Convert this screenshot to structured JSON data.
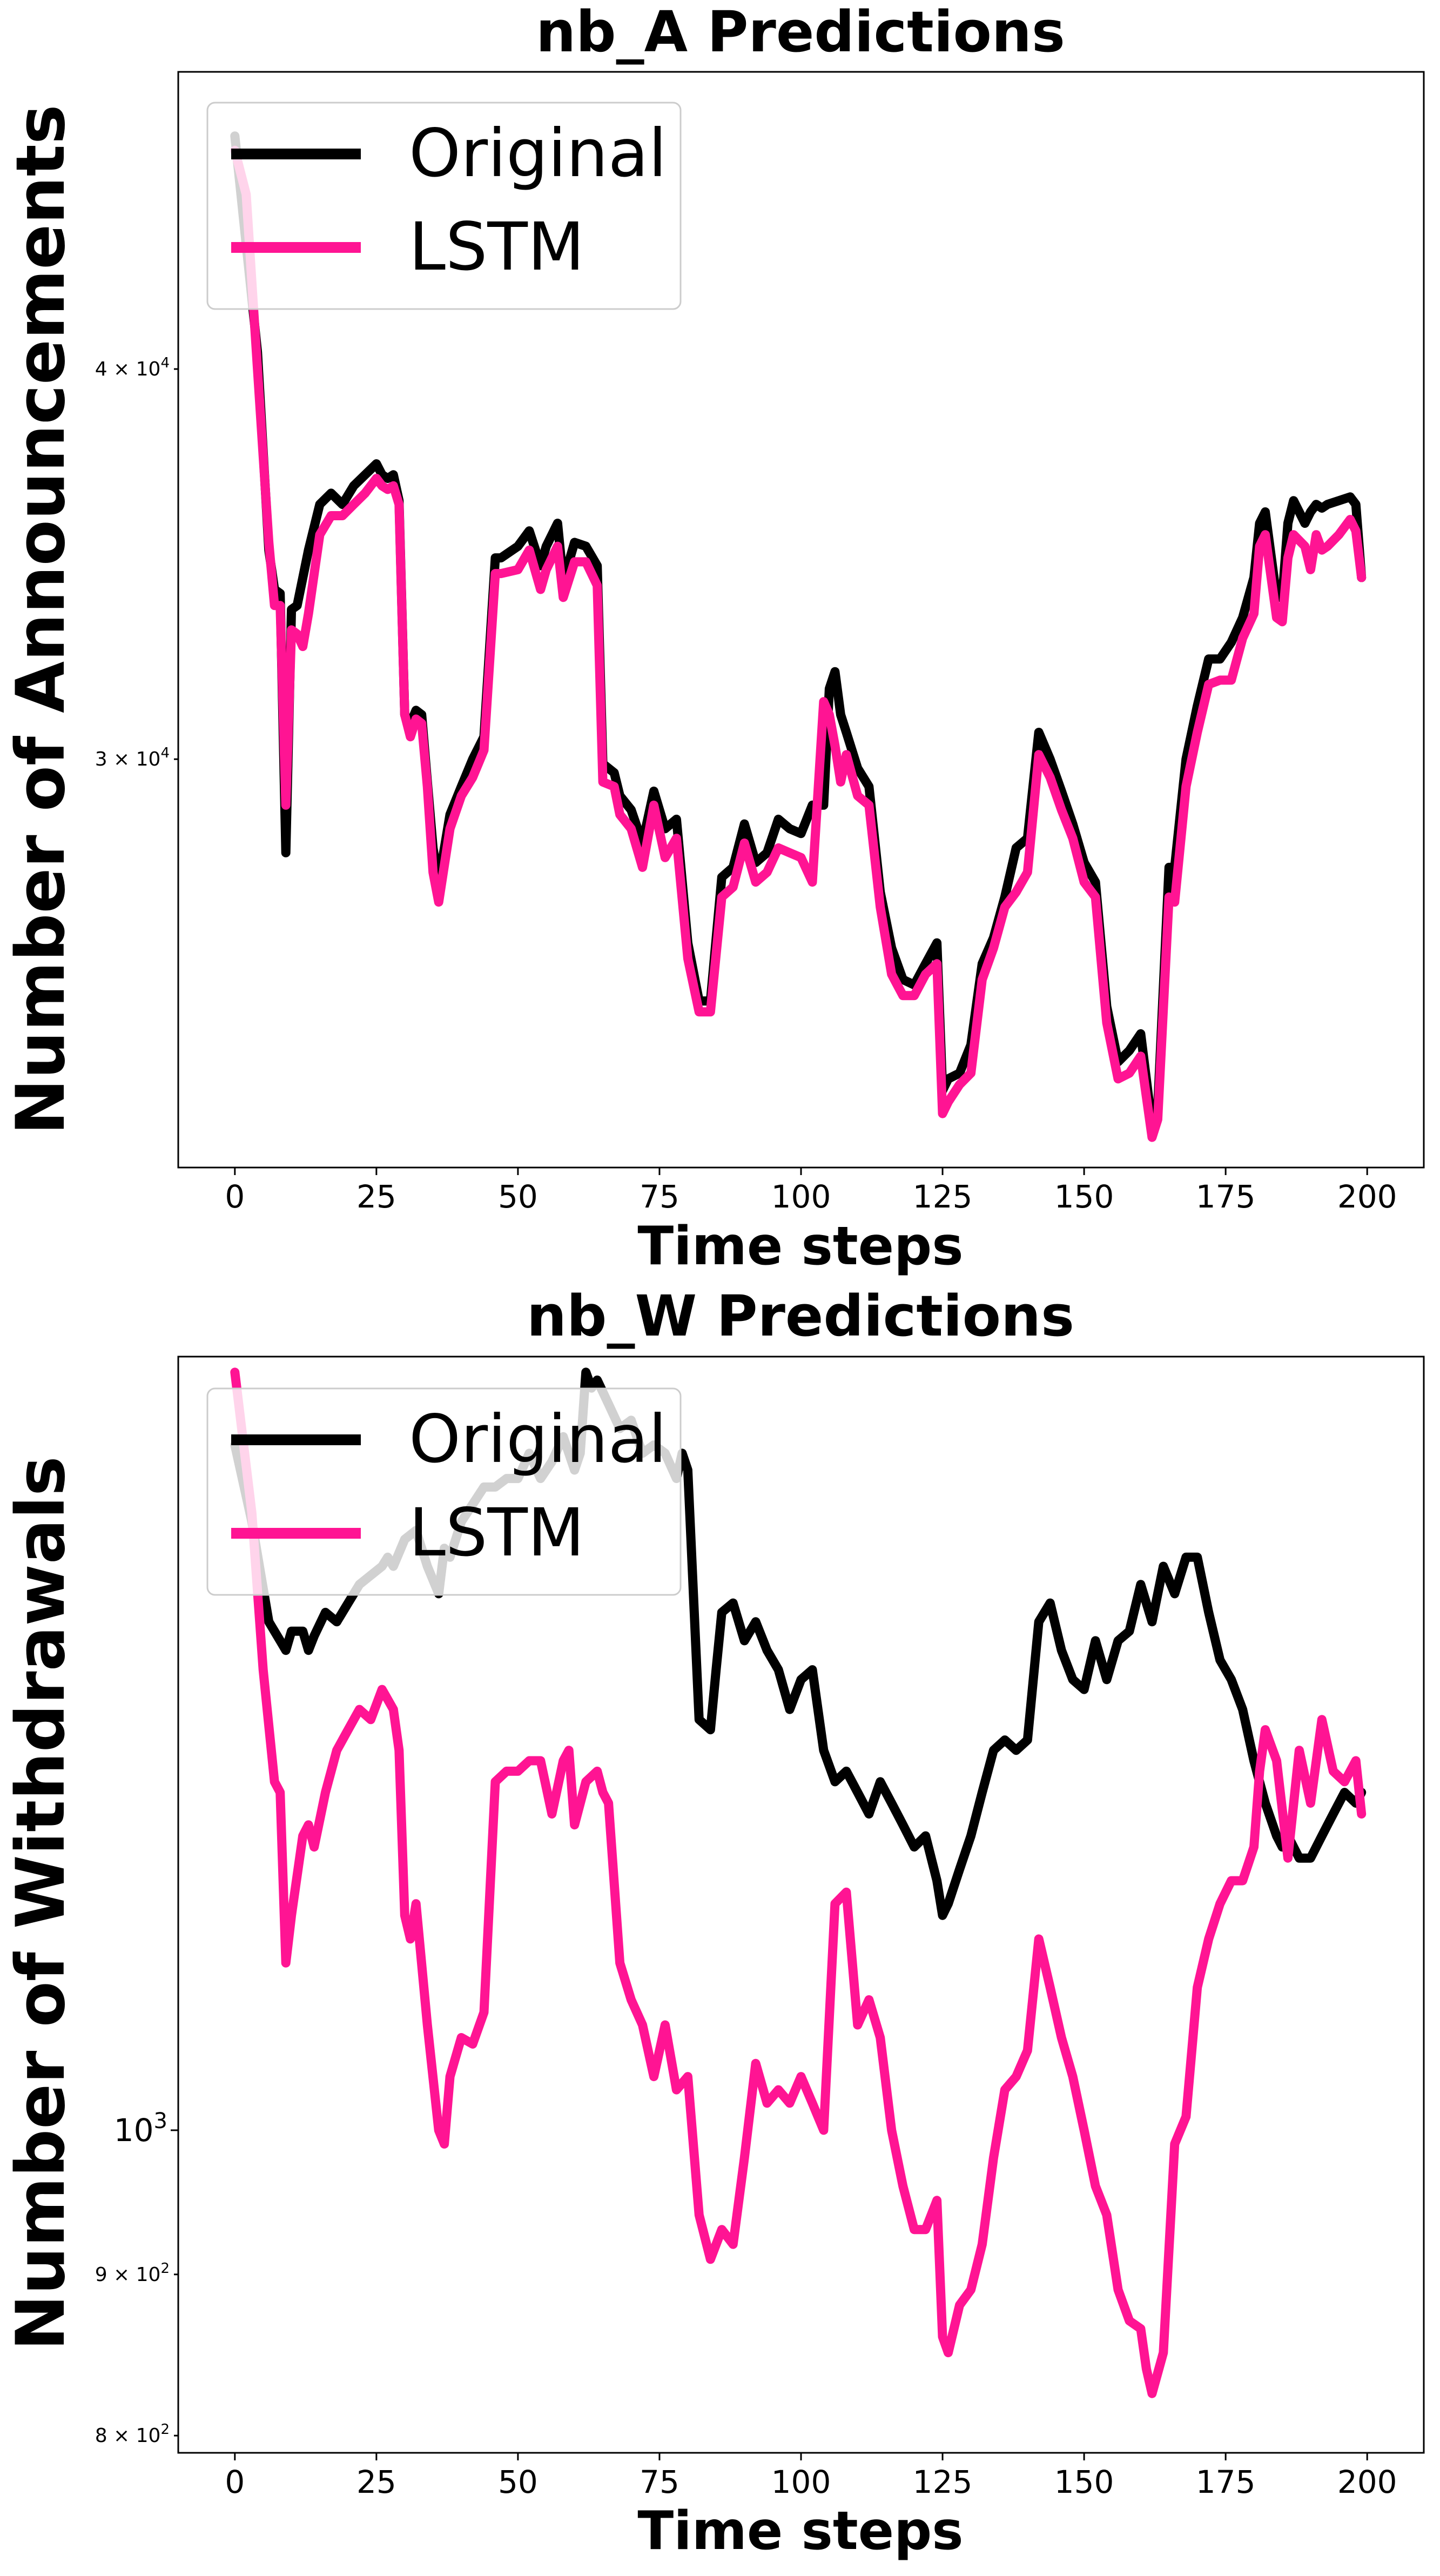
{
  "chart_data": [
    {
      "type": "line",
      "title": "nb_A Predictions",
      "xlabel": "Time steps",
      "ylabel": "Number of Announcements",
      "yscale": "log",
      "xlim": [
        -10,
        210
      ],
      "ylim": [
        22200,
        49800
      ],
      "grid": false,
      "legend": "top-left",
      "xticks": [
        0,
        25,
        50,
        75,
        100,
        125,
        150,
        175,
        200
      ],
      "xtick_labels": [
        "0",
        "25",
        "50",
        "75",
        "100",
        "125",
        "150",
        "175",
        "200"
      ],
      "yticks": [
        {
          "value": 40000,
          "mantissa": "4 × 10",
          "exp": "4"
        },
        {
          "value": 30000,
          "mantissa": "3 × 10",
          "exp": "4"
        }
      ],
      "series": [
        {
          "name": "Original",
          "color": "#000000",
          "x": [
            0,
            4,
            6,
            7,
            8,
            9,
            10,
            11,
            13,
            15,
            17,
            19,
            21,
            23,
            25,
            26,
            27,
            28,
            29,
            30,
            31,
            32,
            33,
            34,
            35,
            36,
            38,
            40,
            42,
            44,
            46,
            47,
            50,
            52,
            54,
            55,
            57,
            58,
            60,
            62,
            64,
            65,
            67,
            68,
            70,
            72,
            74,
            76,
            78,
            80,
            82,
            84,
            86,
            88,
            90,
            92,
            94,
            96,
            98,
            100,
            102,
            104,
            105,
            106,
            107,
            108,
            110,
            112,
            114,
            116,
            118,
            120,
            122,
            124,
            125,
            126,
            128,
            130,
            132,
            134,
            136,
            138,
            140,
            142,
            144,
            146,
            148,
            150,
            152,
            154,
            156,
            158,
            160,
            162,
            163,
            165,
            166,
            168,
            170,
            172,
            174,
            176,
            178,
            180,
            181,
            182,
            184,
            185,
            186,
            187,
            189,
            190,
            191,
            192,
            193,
            195,
            197,
            198,
            199
          ],
          "y": [
            47500,
            40500,
            35000,
            34000,
            33900,
            28000,
            33500,
            33600,
            35000,
            36200,
            36500,
            36200,
            36700,
            37000,
            37300,
            37000,
            36900,
            37000,
            36300,
            31000,
            30800,
            31100,
            31000,
            29500,
            28100,
            27400,
            28800,
            29400,
            30000,
            30500,
            34800,
            34800,
            35100,
            35500,
            34600,
            35100,
            35700,
            34200,
            35200,
            35100,
            34600,
            29900,
            29700,
            29200,
            28900,
            28200,
            29300,
            28500,
            28700,
            26200,
            25100,
            25100,
            27500,
            27700,
            28600,
            27800,
            28000,
            28700,
            28500,
            28400,
            29000,
            29000,
            31600,
            32000,
            31000,
            30600,
            29800,
            29400,
            27200,
            26100,
            25500,
            25400,
            25800,
            26200,
            23500,
            23700,
            23800,
            24300,
            25800,
            26300,
            27100,
            28100,
            28300,
            30600,
            30000,
            29300,
            28600,
            27800,
            27400,
            25000,
            24000,
            24200,
            24500,
            22900,
            23200,
            27700,
            27700,
            30000,
            31200,
            32300,
            32300,
            32700,
            33300,
            34300,
            35700,
            36000,
            33800,
            33800,
            35700,
            36300,
            35700,
            36000,
            36200,
            36100,
            36200,
            36300,
            36400,
            36200,
            34300
          ]
        },
        {
          "name": "LSTM",
          "color": "#ff1493",
          "x": [
            0,
            2,
            4,
            6,
            7,
            8,
            9,
            10,
            11,
            12,
            13,
            15,
            17,
            19,
            21,
            23,
            25,
            26,
            27,
            28,
            29,
            30,
            31,
            32,
            33,
            34,
            35,
            36,
            38,
            40,
            42,
            44,
            46,
            47,
            50,
            52,
            54,
            55,
            57,
            58,
            60,
            62,
            64,
            65,
            67,
            68,
            70,
            72,
            74,
            76,
            78,
            80,
            82,
            84,
            86,
            88,
            90,
            92,
            94,
            96,
            98,
            100,
            102,
            104,
            105,
            106,
            107,
            108,
            110,
            112,
            114,
            116,
            118,
            120,
            122,
            124,
            125,
            126,
            128,
            130,
            132,
            134,
            136,
            138,
            140,
            142,
            144,
            146,
            148,
            150,
            152,
            154,
            156,
            158,
            160,
            162,
            163,
            165,
            166,
            168,
            170,
            172,
            174,
            176,
            178,
            180,
            181,
            182,
            184,
            185,
            186,
            187,
            189,
            190,
            191,
            192,
            193,
            195,
            197,
            198,
            199
          ],
          "y": [
            47000,
            45500,
            40000,
            35200,
            33600,
            33600,
            29000,
            33000,
            32900,
            32600,
            33400,
            35400,
            35900,
            35900,
            36200,
            36500,
            36900,
            36700,
            36600,
            36700,
            36200,
            31000,
            30500,
            30900,
            30800,
            29400,
            27600,
            27000,
            28500,
            29200,
            29600,
            30200,
            34400,
            34400,
            34500,
            35000,
            34000,
            34500,
            35100,
            33800,
            34700,
            34700,
            34100,
            29500,
            29400,
            28800,
            28500,
            27700,
            29000,
            27900,
            28300,
            25900,
            24900,
            24900,
            27100,
            27300,
            28200,
            27400,
            27600,
            28100,
            28000,
            27900,
            27400,
            31300,
            31000,
            30300,
            29500,
            30100,
            29200,
            29000,
            26900,
            25600,
            25200,
            25200,
            25600,
            25800,
            23100,
            23300,
            23600,
            23800,
            25500,
            26100,
            26900,
            27200,
            27600,
            30100,
            29600,
            28900,
            28300,
            27400,
            27100,
            24700,
            23700,
            23800,
            24100,
            22700,
            23000,
            27100,
            27000,
            29400,
            30600,
            31700,
            31800,
            31800,
            32800,
            33400,
            35100,
            35400,
            33300,
            33200,
            34800,
            35400,
            35100,
            34500,
            35400,
            35000,
            35100,
            35400,
            35800,
            35500,
            34300
          ]
        }
      ]
    },
    {
      "type": "line",
      "title": "nb_W Predictions",
      "xlabel": "Time steps",
      "ylabel": "Number of Withdrawals",
      "yscale": "log",
      "xlim": [
        -10,
        210
      ],
      "ylim": [
        790,
        1760
      ],
      "grid": false,
      "legend": "top-left",
      "xticks": [
        0,
        25,
        50,
        75,
        100,
        125,
        150,
        175,
        200
      ],
      "xtick_labels": [
        "0",
        "25",
        "50",
        "75",
        "100",
        "125",
        "150",
        "175",
        "200"
      ],
      "yticks": [
        {
          "value": 1000,
          "mantissa": "10",
          "exp": "3",
          "style": "major"
        },
        {
          "value": 900,
          "mantissa": "9 × 10",
          "exp": "2",
          "style": "minor"
        },
        {
          "value": 800,
          "mantissa": "8 × 10",
          "exp": "2",
          "style": "minor"
        }
      ],
      "series": [
        {
          "name": "Original",
          "color": "#000000",
          "x": [
            0,
            3,
            6,
            8,
            9,
            10,
            12,
            13,
            14,
            16,
            18,
            20,
            22,
            24,
            26,
            27,
            28,
            30,
            32,
            34,
            36,
            37,
            38,
            40,
            42,
            44,
            46,
            48,
            50,
            52,
            54,
            56,
            58,
            60,
            61,
            62,
            63,
            64,
            66,
            68,
            70,
            72,
            74,
            76,
            78,
            79,
            80,
            82,
            84,
            85,
            86,
            88,
            90,
            92,
            94,
            96,
            98,
            100,
            102,
            104,
            106,
            108,
            110,
            112,
            114,
            116,
            118,
            120,
            122,
            124,
            125,
            126,
            128,
            130,
            132,
            134,
            136,
            138,
            140,
            142,
            144,
            146,
            148,
            150,
            152,
            154,
            156,
            158,
            160,
            162,
            164,
            166,
            168,
            170,
            172,
            174,
            176,
            178,
            180,
            182,
            184,
            185,
            186,
            188,
            190,
            192,
            194,
            196,
            198,
            199
          ],
          "y": [
            1650,
            1560,
            1450,
            1430,
            1420,
            1440,
            1440,
            1420,
            1435,
            1460,
            1450,
            1470,
            1490,
            1500,
            1510,
            1520,
            1510,
            1540,
            1550,
            1510,
            1480,
            1530,
            1520,
            1560,
            1580,
            1600,
            1600,
            1610,
            1610,
            1640,
            1610,
            1630,
            1660,
            1620,
            1640,
            1740,
            1720,
            1730,
            1700,
            1670,
            1680,
            1640,
            1650,
            1640,
            1610,
            1640,
            1620,
            1350,
            1340,
            1400,
            1460,
            1470,
            1430,
            1450,
            1420,
            1400,
            1360,
            1390,
            1400,
            1320,
            1290,
            1300,
            1280,
            1260,
            1290,
            1270,
            1250,
            1230,
            1240,
            1200,
            1170,
            1180,
            1210,
            1240,
            1280,
            1320,
            1330,
            1320,
            1330,
            1450,
            1470,
            1420,
            1390,
            1380,
            1430,
            1390,
            1430,
            1440,
            1490,
            1450,
            1510,
            1480,
            1520,
            1520,
            1460,
            1410,
            1390,
            1360,
            1310,
            1270,
            1240,
            1230,
            1240,
            1220,
            1220,
            1240,
            1260,
            1280,
            1270,
            1280
          ]
        },
        {
          "name": "LSTM",
          "color": "#ff1493",
          "x": [
            0,
            3,
            5,
            7,
            8,
            9,
            10,
            12,
            13,
            14,
            16,
            18,
            20,
            22,
            24,
            26,
            27,
            28,
            29,
            30,
            31,
            32,
            34,
            36,
            37,
            38,
            40,
            42,
            44,
            46,
            48,
            50,
            52,
            54,
            56,
            58,
            59,
            60,
            62,
            64,
            65,
            66,
            68,
            70,
            72,
            74,
            76,
            78,
            80,
            82,
            84,
            86,
            88,
            90,
            92,
            94,
            96,
            98,
            100,
            102,
            104,
            106,
            108,
            110,
            112,
            114,
            116,
            118,
            120,
            122,
            124,
            125,
            126,
            128,
            130,
            132,
            134,
            136,
            138,
            140,
            142,
            144,
            146,
            148,
            150,
            152,
            154,
            156,
            158,
            160,
            161,
            162,
            164,
            166,
            168,
            170,
            172,
            174,
            176,
            178,
            180,
            181,
            182,
            184,
            186,
            188,
            190,
            192,
            194,
            196,
            198,
            199
          ],
          "y": [
            1740,
            1570,
            1400,
            1290,
            1280,
            1130,
            1170,
            1240,
            1250,
            1230,
            1280,
            1320,
            1340,
            1360,
            1350,
            1380,
            1370,
            1360,
            1320,
            1170,
            1150,
            1180,
            1080,
            1000,
            990,
            1040,
            1070,
            1065,
            1090,
            1290,
            1300,
            1300,
            1310,
            1310,
            1260,
            1310,
            1320,
            1250,
            1290,
            1300,
            1280,
            1270,
            1130,
            1100,
            1080,
            1040,
            1080,
            1030,
            1040,
            940,
            910,
            930,
            920,
            980,
            1050,
            1020,
            1030,
            1020,
            1040,
            1020,
            1000,
            1180,
            1190,
            1080,
            1100,
            1070,
            1000,
            960,
            930,
            930,
            950,
            860,
            850,
            880,
            890,
            920,
            980,
            1030,
            1040,
            1060,
            1150,
            1110,
            1070,
            1040,
            1000,
            960,
            940,
            890,
            870,
            865,
            840,
            825,
            850,
            990,
            1010,
            1110,
            1150,
            1180,
            1200,
            1200,
            1230,
            1300,
            1340,
            1310,
            1220,
            1320,
            1270,
            1350,
            1300,
            1290,
            1310,
            1260
          ]
        }
      ]
    }
  ]
}
